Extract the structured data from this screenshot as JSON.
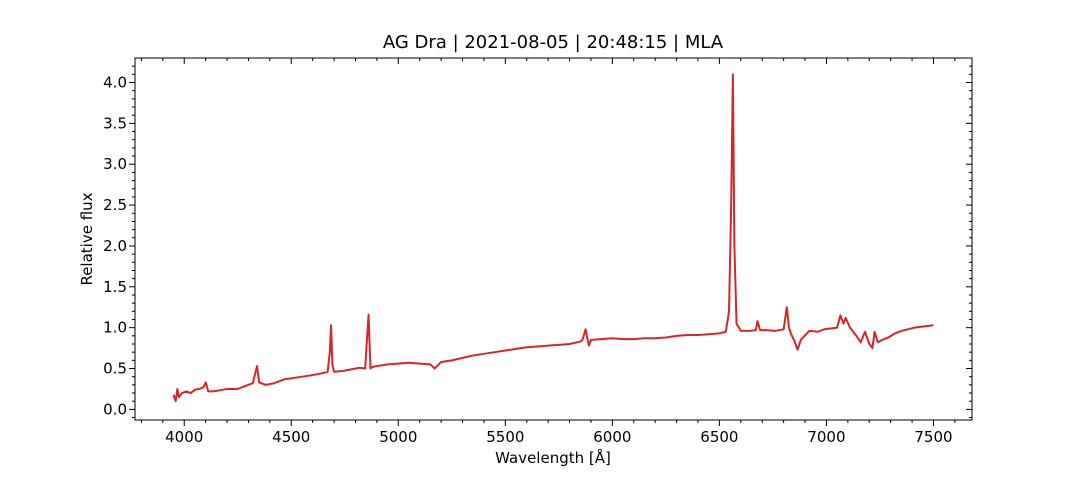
{
  "chart_data": {
    "type": "line",
    "title": "AG Dra | 2021-08-05 | 20:48:15 | MLA",
    "xlabel": "Wavelength [Å]",
    "ylabel": "Relative flux",
    "xlim": [
      3770,
      7680
    ],
    "ylim": [
      -0.13,
      4.3
    ],
    "xticks": [
      4000,
      4500,
      5000,
      5500,
      6000,
      6500,
      7000,
      7500
    ],
    "yticks": [
      0.0,
      0.5,
      1.0,
      1.5,
      2.0,
      2.5,
      3.0,
      3.5,
      4.0
    ],
    "xtick_labels": [
      "4000",
      "4500",
      "5000",
      "5500",
      "6000",
      "6500",
      "7000",
      "7500"
    ],
    "ytick_labels": [
      "0.0",
      "0.5",
      "1.0",
      "1.5",
      "2.0",
      "2.5",
      "3.0",
      "3.5",
      "4.0"
    ],
    "grid": false,
    "line_color": "#d62728",
    "series": [
      {
        "x": [
          3950,
          3960,
          3968,
          3975,
          3990,
          4010,
          4030,
          4050,
          4070,
          4090,
          4101,
          4112,
          4130,
          4160,
          4200,
          4250,
          4300,
          4320,
          4340,
          4350,
          4380,
          4420,
          4470,
          4500,
          4550,
          4600,
          4640,
          4670,
          4680,
          4686,
          4692,
          4700,
          4740,
          4780,
          4820,
          4845,
          4861,
          4870,
          4880,
          4900,
          4950,
          5000,
          5050,
          5100,
          5150,
          5170,
          5200,
          5250,
          5300,
          5350,
          5400,
          5450,
          5500,
          5550,
          5600,
          5650,
          5700,
          5750,
          5800,
          5850,
          5860,
          5875,
          5890,
          5900,
          5950,
          6000,
          6050,
          6100,
          6150,
          6200,
          6250,
          6300,
          6350,
          6400,
          6450,
          6500,
          6530,
          6545,
          6555,
          6563,
          6570,
          6580,
          6600,
          6640,
          6670,
          6678,
          6690,
          6720,
          6760,
          6800,
          6815,
          6825,
          6835,
          6850,
          6865,
          6880,
          6920,
          6960,
          6990,
          7020,
          7050,
          7065,
          7080,
          7090,
          7110,
          7140,
          7160,
          7180,
          7200,
          7215,
          7225,
          7240,
          7260,
          7290,
          7320,
          7350,
          7380,
          7410,
          7440,
          7470,
          7500
        ],
        "y": [
          0.18,
          0.1,
          0.25,
          0.15,
          0.2,
          0.22,
          0.2,
          0.24,
          0.25,
          0.27,
          0.33,
          0.22,
          0.22,
          0.23,
          0.25,
          0.25,
          0.3,
          0.32,
          0.53,
          0.33,
          0.3,
          0.32,
          0.37,
          0.38,
          0.4,
          0.42,
          0.44,
          0.46,
          0.7,
          1.03,
          0.55,
          0.46,
          0.47,
          0.49,
          0.51,
          0.5,
          1.16,
          0.5,
          0.52,
          0.53,
          0.55,
          0.56,
          0.57,
          0.56,
          0.55,
          0.5,
          0.58,
          0.6,
          0.63,
          0.66,
          0.68,
          0.7,
          0.72,
          0.74,
          0.76,
          0.77,
          0.78,
          0.79,
          0.8,
          0.83,
          0.85,
          0.98,
          0.78,
          0.85,
          0.86,
          0.87,
          0.86,
          0.86,
          0.87,
          0.87,
          0.88,
          0.9,
          0.91,
          0.91,
          0.92,
          0.93,
          0.95,
          1.2,
          2.5,
          4.1,
          2.0,
          1.05,
          0.96,
          0.96,
          0.97,
          1.08,
          0.97,
          0.97,
          0.96,
          0.98,
          1.25,
          1.0,
          0.92,
          0.84,
          0.73,
          0.85,
          0.96,
          0.95,
          0.98,
          0.99,
          1.0,
          1.15,
          1.05,
          1.12,
          1.0,
          0.9,
          0.82,
          0.95,
          0.8,
          0.75,
          0.95,
          0.82,
          0.85,
          0.88,
          0.93,
          0.96,
          0.98,
          1.0,
          1.01,
          1.02,
          1.03
        ]
      }
    ]
  }
}
